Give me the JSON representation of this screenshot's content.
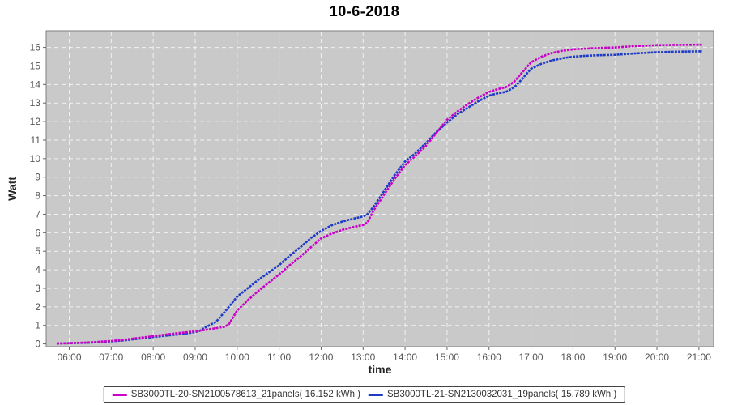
{
  "title": "10-6-2018",
  "chart_data": {
    "type": "line",
    "title": "10-6-2018",
    "xlabel": "time",
    "ylabel": "Watt",
    "xlim": [
      5.45,
      21.35
    ],
    "ylim": [
      -0.15,
      16.9
    ],
    "grid": "white dashed, horizontal and vertical, on gray plot background",
    "plot_bg": "#c9c9c9",
    "grid_color": "#f2f2f2",
    "legend_position": "bottom-center",
    "x_ticks": [
      {
        "h": 6,
        "label": "06:00"
      },
      {
        "h": 7,
        "label": "07:00"
      },
      {
        "h": 8,
        "label": "08:00"
      },
      {
        "h": 9,
        "label": "09:00"
      },
      {
        "h": 10,
        "label": "10:00"
      },
      {
        "h": 11,
        "label": "11:00"
      },
      {
        "h": 12,
        "label": "12:00"
      },
      {
        "h": 13,
        "label": "13:00"
      },
      {
        "h": 14,
        "label": "14:00"
      },
      {
        "h": 15,
        "label": "15:00"
      },
      {
        "h": 16,
        "label": "16:00"
      },
      {
        "h": 17,
        "label": "17:00"
      },
      {
        "h": 18,
        "label": "18:00"
      },
      {
        "h": 19,
        "label": "19:00"
      },
      {
        "h": 20,
        "label": "20:00"
      },
      {
        "h": 21,
        "label": "21:00"
      }
    ],
    "y_ticks": [
      0,
      1,
      2,
      3,
      4,
      5,
      6,
      7,
      8,
      9,
      10,
      11,
      12,
      13,
      14,
      15,
      16
    ],
    "series": [
      {
        "name": "SB3000TL-20-SN2100578613_21panels( 16.152 kWh )",
        "total_kwh": 16.152,
        "color": "#c800c8",
        "points": [
          [
            5.7,
            0.02
          ],
          [
            6.0,
            0.04
          ],
          [
            6.25,
            0.06
          ],
          [
            6.5,
            0.08
          ],
          [
            6.75,
            0.12
          ],
          [
            7.0,
            0.16
          ],
          [
            7.25,
            0.21
          ],
          [
            7.5,
            0.28
          ],
          [
            7.75,
            0.35
          ],
          [
            8.0,
            0.42
          ],
          [
            8.25,
            0.49
          ],
          [
            8.5,
            0.56
          ],
          [
            8.75,
            0.62
          ],
          [
            9.0,
            0.68
          ],
          [
            9.25,
            0.76
          ],
          [
            9.5,
            0.85
          ],
          [
            9.7,
            0.93
          ],
          [
            9.8,
            1.05
          ],
          [
            10.0,
            1.8
          ],
          [
            10.25,
            2.35
          ],
          [
            10.5,
            2.85
          ],
          [
            10.75,
            3.3
          ],
          [
            11.0,
            3.75
          ],
          [
            11.25,
            4.25
          ],
          [
            11.5,
            4.7
          ],
          [
            11.75,
            5.2
          ],
          [
            12.0,
            5.7
          ],
          [
            12.25,
            5.95
          ],
          [
            12.5,
            6.15
          ],
          [
            12.75,
            6.3
          ],
          [
            13.0,
            6.42
          ],
          [
            13.1,
            6.55
          ],
          [
            13.25,
            7.2
          ],
          [
            13.5,
            8.05
          ],
          [
            13.75,
            8.9
          ],
          [
            14.0,
            9.65
          ],
          [
            14.25,
            10.15
          ],
          [
            14.5,
            10.7
          ],
          [
            14.75,
            11.4
          ],
          [
            15.0,
            12.1
          ],
          [
            15.25,
            12.55
          ],
          [
            15.5,
            12.95
          ],
          [
            15.75,
            13.3
          ],
          [
            16.0,
            13.6
          ],
          [
            16.2,
            13.75
          ],
          [
            16.4,
            13.85
          ],
          [
            16.6,
            14.15
          ],
          [
            16.75,
            14.55
          ],
          [
            17.0,
            15.2
          ],
          [
            17.25,
            15.5
          ],
          [
            17.5,
            15.7
          ],
          [
            17.75,
            15.82
          ],
          [
            18.0,
            15.9
          ],
          [
            18.25,
            15.93
          ],
          [
            18.5,
            15.96
          ],
          [
            19.0,
            16.0
          ],
          [
            19.25,
            16.04
          ],
          [
            19.5,
            16.08
          ],
          [
            19.75,
            16.1
          ],
          [
            20.0,
            16.12
          ],
          [
            20.5,
            16.14
          ],
          [
            21.0,
            16.15
          ],
          [
            21.08,
            16.15
          ]
        ]
      },
      {
        "name": "SB3000TL-21-SN2130032031_19panels( 15.789 kWh )",
        "total_kwh": 15.789,
        "color": "#1e3ac8",
        "points": [
          [
            5.7,
            0.02
          ],
          [
            6.0,
            0.04
          ],
          [
            6.25,
            0.05
          ],
          [
            6.5,
            0.07
          ],
          [
            6.75,
            0.1
          ],
          [
            7.0,
            0.14
          ],
          [
            7.25,
            0.18
          ],
          [
            7.5,
            0.24
          ],
          [
            7.75,
            0.3
          ],
          [
            8.0,
            0.37
          ],
          [
            8.25,
            0.43
          ],
          [
            8.5,
            0.49
          ],
          [
            8.75,
            0.55
          ],
          [
            9.0,
            0.64
          ],
          [
            9.1,
            0.7
          ],
          [
            9.25,
            0.9
          ],
          [
            9.5,
            1.2
          ],
          [
            9.75,
            1.85
          ],
          [
            10.0,
            2.55
          ],
          [
            10.25,
            3.0
          ],
          [
            10.5,
            3.45
          ],
          [
            10.75,
            3.85
          ],
          [
            11.0,
            4.25
          ],
          [
            11.25,
            4.75
          ],
          [
            11.5,
            5.2
          ],
          [
            11.75,
            5.7
          ],
          [
            12.0,
            6.1
          ],
          [
            12.25,
            6.4
          ],
          [
            12.5,
            6.6
          ],
          [
            12.75,
            6.75
          ],
          [
            13.0,
            6.88
          ],
          [
            13.1,
            7.0
          ],
          [
            13.25,
            7.4
          ],
          [
            13.5,
            8.25
          ],
          [
            13.75,
            9.1
          ],
          [
            14.0,
            9.85
          ],
          [
            14.25,
            10.3
          ],
          [
            14.5,
            10.85
          ],
          [
            14.75,
            11.45
          ],
          [
            15.0,
            11.95
          ],
          [
            15.25,
            12.4
          ],
          [
            15.5,
            12.75
          ],
          [
            15.75,
            13.1
          ],
          [
            16.0,
            13.4
          ],
          [
            16.2,
            13.52
          ],
          [
            16.4,
            13.6
          ],
          [
            16.6,
            13.85
          ],
          [
            16.75,
            14.2
          ],
          [
            17.0,
            14.85
          ],
          [
            17.25,
            15.12
          ],
          [
            17.5,
            15.3
          ],
          [
            17.75,
            15.42
          ],
          [
            18.0,
            15.5
          ],
          [
            18.25,
            15.54
          ],
          [
            18.5,
            15.57
          ],
          [
            19.0,
            15.6
          ],
          [
            19.25,
            15.64
          ],
          [
            19.5,
            15.68
          ],
          [
            19.75,
            15.71
          ],
          [
            20.0,
            15.74
          ],
          [
            20.5,
            15.77
          ],
          [
            21.0,
            15.79
          ],
          [
            21.08,
            15.79
          ]
        ]
      }
    ]
  }
}
